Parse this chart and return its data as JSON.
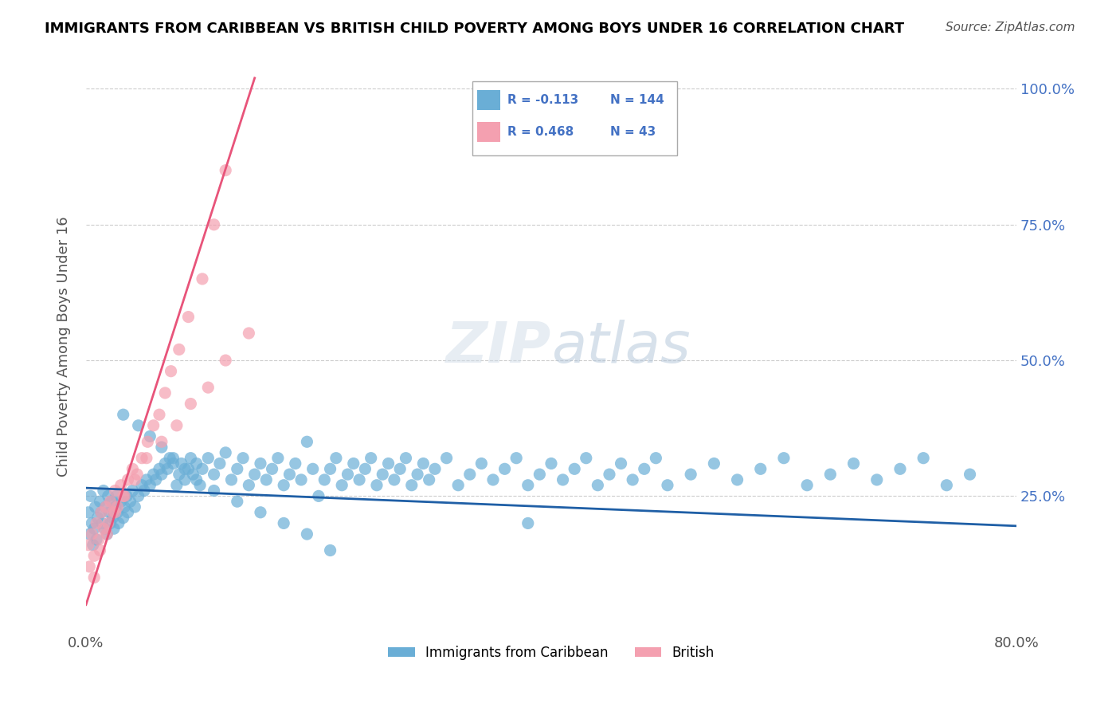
{
  "title": "IMMIGRANTS FROM CARIBBEAN VS BRITISH CHILD POVERTY AMONG BOYS UNDER 16 CORRELATION CHART",
  "source": "Source: ZipAtlas.com",
  "xlabel": "",
  "ylabel": "Child Poverty Among Boys Under 16",
  "xmin": 0.0,
  "xmax": 0.8,
  "ymin": 0.0,
  "ymax": 1.05,
  "yticks": [
    0.0,
    0.25,
    0.5,
    0.75,
    1.0
  ],
  "ytick_labels": [
    "",
    "25.0%",
    "50.0%",
    "75.0%",
    "100.0%"
  ],
  "xtick_labels": [
    "0.0%",
    "80.0%"
  ],
  "blue_color": "#6aaed6",
  "pink_color": "#f4a0b0",
  "blue_line_color": "#1f5fa6",
  "pink_line_color": "#e8547a",
  "legend_blue_R": "-0.113",
  "legend_blue_N": "144",
  "legend_pink_R": "0.468",
  "legend_pink_N": "43",
  "legend_label_blue": "Immigrants from Caribbean",
  "legend_label_pink": "British",
  "blue_scatter_x": [
    0.002,
    0.003,
    0.004,
    0.005,
    0.006,
    0.007,
    0.008,
    0.009,
    0.01,
    0.012,
    0.013,
    0.014,
    0.015,
    0.016,
    0.017,
    0.018,
    0.019,
    0.02,
    0.021,
    0.022,
    0.023,
    0.024,
    0.025,
    0.026,
    0.027,
    0.028,
    0.03,
    0.032,
    0.033,
    0.035,
    0.036,
    0.038,
    0.04,
    0.042,
    0.045,
    0.048,
    0.05,
    0.052,
    0.055,
    0.058,
    0.06,
    0.063,
    0.065,
    0.068,
    0.07,
    0.072,
    0.075,
    0.078,
    0.08,
    0.082,
    0.085,
    0.088,
    0.09,
    0.092,
    0.095,
    0.098,
    0.1,
    0.105,
    0.11,
    0.115,
    0.12,
    0.125,
    0.13,
    0.135,
    0.14,
    0.145,
    0.15,
    0.155,
    0.16,
    0.165,
    0.17,
    0.175,
    0.18,
    0.185,
    0.19,
    0.195,
    0.2,
    0.205,
    0.21,
    0.215,
    0.22,
    0.225,
    0.23,
    0.235,
    0.24,
    0.245,
    0.25,
    0.255,
    0.26,
    0.265,
    0.27,
    0.275,
    0.28,
    0.285,
    0.29,
    0.295,
    0.3,
    0.31,
    0.32,
    0.33,
    0.34,
    0.35,
    0.36,
    0.37,
    0.38,
    0.39,
    0.4,
    0.41,
    0.42,
    0.43,
    0.44,
    0.45,
    0.46,
    0.47,
    0.48,
    0.49,
    0.5,
    0.52,
    0.54,
    0.56,
    0.58,
    0.6,
    0.62,
    0.64,
    0.66,
    0.68,
    0.7,
    0.72,
    0.74,
    0.76,
    0.032,
    0.045,
    0.055,
    0.065,
    0.075,
    0.085,
    0.095,
    0.11,
    0.13,
    0.15,
    0.17,
    0.19,
    0.21,
    0.38
  ],
  "blue_scatter_y": [
    0.22,
    0.18,
    0.25,
    0.2,
    0.16,
    0.19,
    0.23,
    0.17,
    0.21,
    0.24,
    0.22,
    0.2,
    0.26,
    0.19,
    0.23,
    0.18,
    0.25,
    0.22,
    0.2,
    0.24,
    0.21,
    0.19,
    0.23,
    0.25,
    0.22,
    0.2,
    0.24,
    0.21,
    0.23,
    0.25,
    0.22,
    0.24,
    0.26,
    0.23,
    0.25,
    0.27,
    0.26,
    0.28,
    0.27,
    0.29,
    0.28,
    0.3,
    0.29,
    0.31,
    0.3,
    0.32,
    0.31,
    0.27,
    0.29,
    0.31,
    0.28,
    0.3,
    0.32,
    0.29,
    0.31,
    0.27,
    0.3,
    0.32,
    0.29,
    0.31,
    0.33,
    0.28,
    0.3,
    0.32,
    0.27,
    0.29,
    0.31,
    0.28,
    0.3,
    0.32,
    0.27,
    0.29,
    0.31,
    0.28,
    0.35,
    0.3,
    0.25,
    0.28,
    0.3,
    0.32,
    0.27,
    0.29,
    0.31,
    0.28,
    0.3,
    0.32,
    0.27,
    0.29,
    0.31,
    0.28,
    0.3,
    0.32,
    0.27,
    0.29,
    0.31,
    0.28,
    0.3,
    0.32,
    0.27,
    0.29,
    0.31,
    0.28,
    0.3,
    0.32,
    0.27,
    0.29,
    0.31,
    0.28,
    0.3,
    0.32,
    0.27,
    0.29,
    0.31,
    0.28,
    0.3,
    0.32,
    0.27,
    0.29,
    0.31,
    0.28,
    0.3,
    0.32,
    0.27,
    0.29,
    0.31,
    0.28,
    0.3,
    0.32,
    0.27,
    0.29,
    0.4,
    0.38,
    0.36,
    0.34,
    0.32,
    0.3,
    0.28,
    0.26,
    0.24,
    0.22,
    0.2,
    0.18,
    0.15,
    0.2
  ],
  "pink_scatter_x": [
    0.002,
    0.003,
    0.005,
    0.007,
    0.009,
    0.011,
    0.013,
    0.015,
    0.017,
    0.019,
    0.021,
    0.023,
    0.025,
    0.027,
    0.03,
    0.033,
    0.036,
    0.04,
    0.044,
    0.048,
    0.053,
    0.058,
    0.063,
    0.068,
    0.073,
    0.08,
    0.088,
    0.1,
    0.11,
    0.12,
    0.007,
    0.012,
    0.018,
    0.025,
    0.032,
    0.042,
    0.052,
    0.065,
    0.078,
    0.09,
    0.105,
    0.12,
    0.14
  ],
  "pink_scatter_y": [
    0.16,
    0.12,
    0.18,
    0.14,
    0.2,
    0.17,
    0.22,
    0.19,
    0.23,
    0.2,
    0.24,
    0.22,
    0.26,
    0.23,
    0.27,
    0.25,
    0.28,
    0.3,
    0.29,
    0.32,
    0.35,
    0.38,
    0.4,
    0.44,
    0.48,
    0.52,
    0.58,
    0.65,
    0.75,
    0.85,
    0.1,
    0.15,
    0.18,
    0.22,
    0.25,
    0.28,
    0.32,
    0.35,
    0.38,
    0.42,
    0.45,
    0.5,
    0.55
  ],
  "blue_trend_x": [
    0.0,
    0.8
  ],
  "blue_trend_y": [
    0.265,
    0.195
  ],
  "pink_trend_x": [
    0.0,
    0.145
  ],
  "pink_trend_y": [
    0.05,
    1.02
  ]
}
